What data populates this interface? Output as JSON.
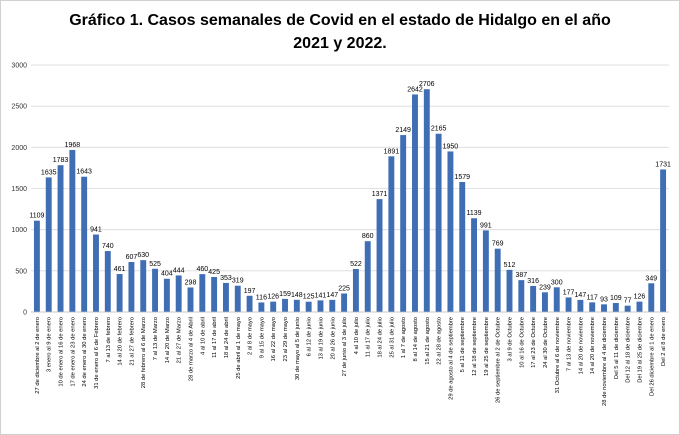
{
  "chart_data": {
    "type": "bar",
    "title_line1": "Gráfico 1. Casos semanales de Covid en el estado de Hidalgo en el año",
    "title_line2": "2021 y 2022.",
    "ylim": [
      0,
      3000
    ],
    "yticks": [
      0,
      500,
      1000,
      1500,
      2000,
      2500,
      3000
    ],
    "grid": true,
    "bar_color": "#3f6eb5",
    "categories": [
      "27 de diciembre al 2 de enero",
      "3 enero al 9 de enero",
      "10 de enero al 16 de enero",
      "17 de enero al 23 de enero",
      "24 de enero al 30 de enero",
      "31 de enero al 6 de Febrero",
      "7 al 13 de febrero",
      "14 al 20 de febrero",
      "21 al 27 de febrero",
      "28 de febrero al 6 de Marzo",
      "7 al 13 de Marzo",
      "14 al 20 de Marzo",
      "21 al 27 de Marzo",
      "28 de marzo al 4 de Abril",
      "4 al 10 de abril",
      "11 al 17 de abril",
      "18 al 24 de abril",
      "25 de abril al 1 de mayo",
      "2 al 8 de mayo",
      "9 al 15 de mayo",
      "16 al 22 de mayo",
      "23 al 29 de mayo",
      "30 de mayo al 5 de junio",
      "6 al 12 de junio",
      "13 al 19 de junio",
      "20 al 26 de junio",
      "27 de junio al 3 de julio",
      "4 al 10 de julio",
      "11 al 17 de julio",
      "18 al 24 de julio",
      "25 al 31 de julio",
      "1 al 7 de agosto",
      "8 al 14 de agosto",
      "15 al 21 de agosto",
      "22 al 28 de agosto",
      "29 de agosto al 4 de septiembre",
      "5 al 11 de septiembre",
      "12 al 18 de septiembre",
      "19 al 25 de septiembre",
      "26 de septiembre al 2 de Octubre",
      "3 al 9 de Octubre",
      "10 al 16 de Octubre",
      "17 al 23 de Octubre",
      "24 al 30 de Octubre",
      "31 Octubre al 6 de noviembre",
      "7 al 13 de noviembre",
      "14 al 20 de noviembre",
      "14 al 20 de noviembre",
      "28 de noviembre al 4 de diciembre",
      "Del 5 al 11 de diciembre",
      "Del 12 al 18 de diciembre",
      "Del 19 al 25 de diciembre",
      "Del 26 diciembre al 1 de enero",
      "Del 2 al 8 de enero"
    ],
    "values": [
      1109,
      1635,
      1783,
      1968,
      1643,
      941,
      740,
      461,
      607,
      630,
      525,
      404,
      444,
      298,
      460,
      425,
      353,
      319,
      197,
      116,
      126,
      159,
      148,
      125,
      141,
      147,
      225,
      522,
      860,
      1371,
      1891,
      2149,
      2642,
      2706,
      2165,
      1950,
      1579,
      1139,
      991,
      769,
      512,
      387,
      316,
      239,
      300,
      177,
      147,
      117,
      93,
      109,
      77,
      126,
      349,
      1731
    ]
  }
}
